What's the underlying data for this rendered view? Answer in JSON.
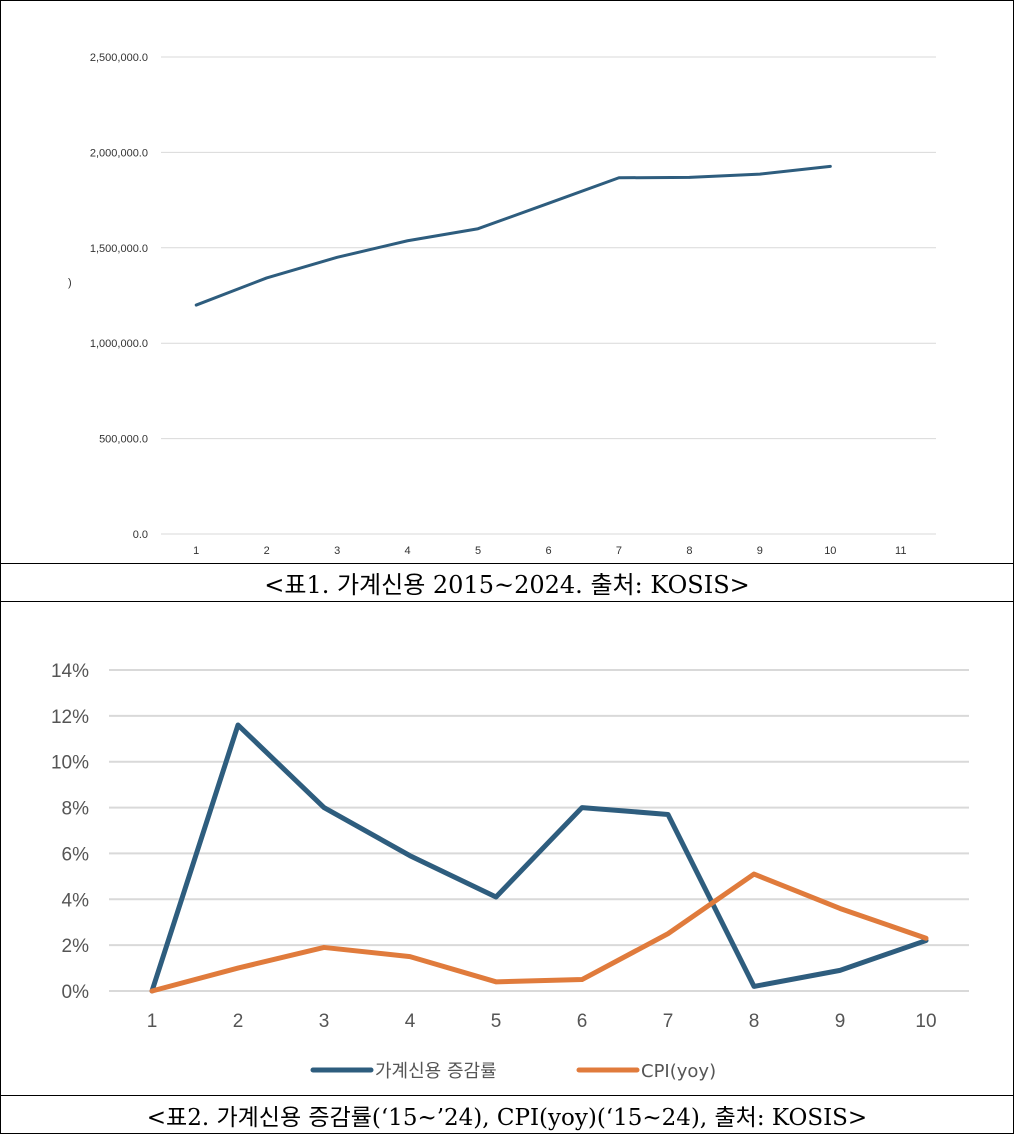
{
  "chart_data": [
    {
      "type": "line",
      "x": [
        1,
        2,
        3,
        4,
        5,
        6,
        7,
        8,
        9,
        10,
        11
      ],
      "series": [
        {
          "values": [
            1200000,
            1342000,
            1450000,
            1537000,
            1600000,
            1733000,
            1867000,
            1869000,
            1886000,
            1927000,
            null
          ]
        }
      ],
      "ylim": [
        0,
        2500000
      ],
      "yticks": [
        "0.0",
        "500,000.0",
        "1,000,000.0",
        "1,500,000.0",
        "2,000,000.0",
        "2,500,000.0"
      ],
      "xticks": [
        "1",
        "2",
        "3",
        "4",
        "5",
        "6",
        "7",
        "8",
        "9",
        "10",
        "11"
      ],
      "grid": true,
      "color": "#2e5d7e",
      "stray_mark": ")"
    },
    {
      "type": "line",
      "x": [
        1,
        2,
        3,
        4,
        5,
        6,
        7,
        8,
        9,
        10
      ],
      "series": [
        {
          "name": "가계신용 증감률",
          "values": [
            0.0,
            11.6,
            8.0,
            5.9,
            4.1,
            8.0,
            7.7,
            0.2,
            0.9,
            2.2
          ],
          "color": "#2e5d7e"
        },
        {
          "name": "CPI(yoy)",
          "values": [
            0.0,
            1.0,
            1.9,
            1.5,
            0.4,
            0.5,
            2.5,
            5.1,
            3.6,
            2.3
          ],
          "color": "#e07b3c"
        }
      ],
      "ylim": [
        0,
        14
      ],
      "yticks": [
        "0%",
        "2%",
        "4%",
        "6%",
        "8%",
        "10%",
        "12%",
        "14%"
      ],
      "xticks": [
        "1",
        "2",
        "3",
        "4",
        "5",
        "6",
        "7",
        "8",
        "9",
        "10"
      ],
      "grid": true,
      "legend": "bottom"
    }
  ],
  "captions": {
    "chart1": "<표1. 가계신용 2015~2024. 출처: KOSIS>",
    "chart2": "<표2. 가계신용 증감률(‘15~’24), CPI(yoy)(‘15~24), 출처: KOSIS>"
  }
}
